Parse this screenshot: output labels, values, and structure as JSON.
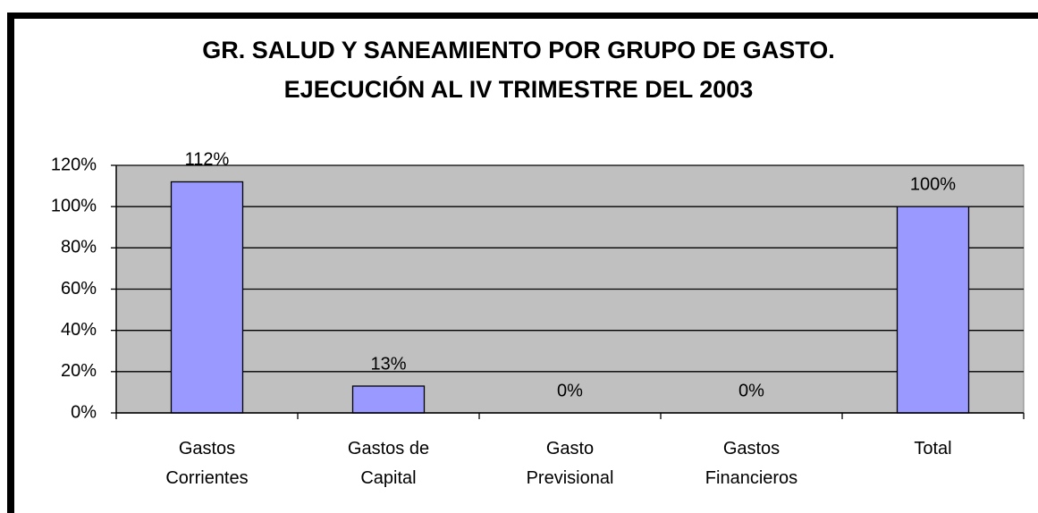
{
  "chart_data": {
    "type": "bar",
    "title": "GR. SALUD Y SANEAMIENTO POR GRUPO DE GASTO.\nEJECUCIÓN AL IV TRIMESTRE DEL 2003",
    "categories": [
      "Gastos\nCorrientes",
      "Gastos de\nCapital",
      "Gasto\nPrevisional",
      "Gastos\nFinancieros",
      "Total"
    ],
    "values": [
      112,
      13,
      0,
      0,
      100
    ],
    "value_labels": [
      "112%",
      "13%",
      "0%",
      "0%",
      "100%"
    ],
    "color": "#9999ff",
    "ylim": [
      0,
      120
    ],
    "yticks": [
      {
        "value": 0,
        "label": "0%"
      },
      {
        "value": 20,
        "label": "20%"
      },
      {
        "value": 40,
        "label": "40%"
      },
      {
        "value": 60,
        "label": "60%"
      },
      {
        "value": 80,
        "label": "80%"
      },
      {
        "value": 100,
        "label": "100%"
      },
      {
        "value": 120,
        "label": "120%"
      }
    ],
    "grid": true
  }
}
